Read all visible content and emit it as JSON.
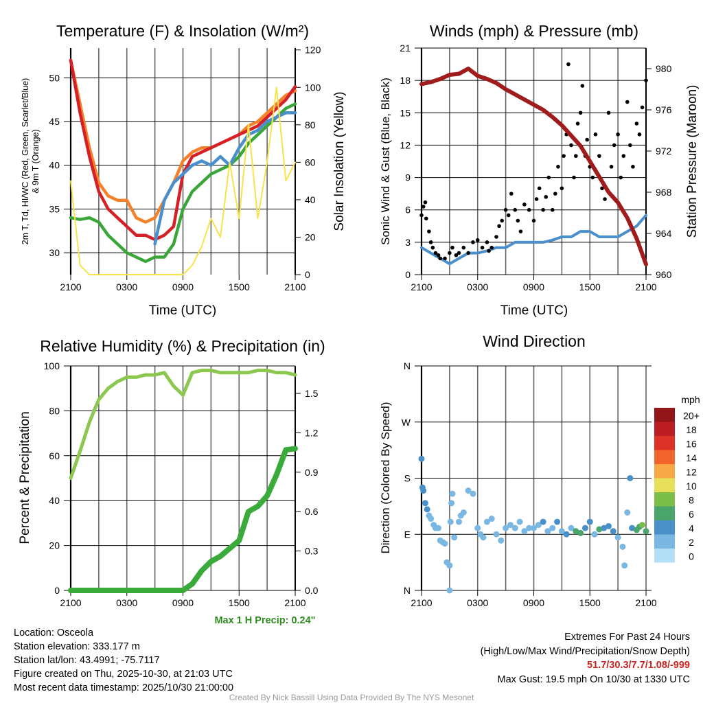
{
  "chart_data": [
    {
      "type": "line",
      "title": "Temperature (F) & Insolation (W/m²)",
      "xlabel": "Time (UTC)",
      "ylabel_lines": [
        "2m T, Td, HI/WC (Red, Green, Scarlet/Blue)",
        "& 9m T (Orange)"
      ],
      "ylabel_right": "Solar Insolation (Yellow)",
      "x_hours": [
        0,
        1,
        2,
        3,
        4,
        5,
        6,
        7,
        8,
        9,
        10,
        11,
        12,
        13,
        14,
        15,
        16,
        17,
        18,
        19,
        20,
        21,
        22,
        23,
        24
      ],
      "x_ticks": [
        "2100",
        "0300",
        "0900",
        "1500",
        "2100"
      ],
      "y_ticks": [
        "30",
        "35",
        "40",
        "45",
        "50"
      ],
      "y_tick_values": [
        30,
        35,
        40,
        45,
        50
      ],
      "y_right_ticks": [
        "0",
        "20",
        "40",
        "60",
        "80",
        "100",
        "120"
      ],
      "y_right_tick_values": [
        0,
        20,
        40,
        60,
        80,
        100,
        120
      ],
      "ylim": [
        27.5,
        53.4
      ],
      "ylim_right": [
        0,
        121
      ],
      "series": [
        {
          "name": "9m T",
          "color": "#f5822a",
          "values": [
            52,
            47,
            42,
            38,
            36.5,
            36,
            36,
            34,
            33.5,
            34,
            36,
            38,
            40.5,
            41.5,
            42,
            42,
            42.5,
            43,
            43.5,
            44.5,
            45,
            46,
            47,
            48,
            48.5
          ]
        },
        {
          "name": "2m T",
          "color": "#d42026",
          "values": [
            52,
            46,
            41,
            37,
            35,
            34,
            33,
            32,
            32,
            31.5,
            32,
            33,
            39,
            41,
            41.5,
            42,
            42.5,
            43,
            43.5,
            44,
            44.5,
            45.5,
            46.5,
            47.5,
            49
          ]
        },
        {
          "name": "Td",
          "color": "#3aa63a",
          "values": [
            34,
            33.8,
            34,
            33.5,
            32,
            31,
            30,
            29.5,
            29,
            29.5,
            29.5,
            31,
            35,
            37,
            38,
            39,
            39.5,
            40,
            41,
            42.5,
            43.5,
            44.5,
            45.5,
            46.5,
            47
          ]
        },
        {
          "name": "HI/WC",
          "color": "#4a8fcc",
          "values": [
            null,
            null,
            null,
            null,
            null,
            null,
            null,
            null,
            null,
            31,
            36,
            38,
            39,
            40,
            40.5,
            40,
            41,
            40,
            42,
            43.5,
            44,
            45,
            45.5,
            46,
            46
          ]
        },
        {
          "name": "Solar Insolation",
          "color": "#f7e34a",
          "axis": "right",
          "values": [
            50,
            5,
            0,
            0,
            0,
            0,
            0,
            0,
            0,
            0,
            0,
            0,
            0,
            5,
            15,
            30,
            20,
            60,
            30,
            80,
            30,
            60,
            100,
            50,
            60
          ]
        }
      ]
    },
    {
      "type": "line+scatter",
      "title": "Winds (mph) & Pressure (mb)",
      "xlabel": "Time (UTC)",
      "ylabel": "Sonic Wind & Gust (Blue, Black)",
      "ylabel_right": "Station Pressure (Maroon)",
      "x_ticks": [
        "2100",
        "0300",
        "0900",
        "1500",
        "2100"
      ],
      "y_ticks": [
        "0",
        "3",
        "6",
        "9",
        "12",
        "15",
        "18",
        "21"
      ],
      "y_tick_values": [
        0,
        3,
        6,
        9,
        12,
        15,
        18,
        21
      ],
      "y_right_ticks": [
        "960",
        "964",
        "968",
        "972",
        "976",
        "980"
      ],
      "y_right_tick_values": [
        960,
        964,
        968,
        972,
        976,
        980
      ],
      "ylim": [
        0,
        21
      ],
      "ylim_right": [
        960,
        982
      ],
      "wind": {
        "name": "Sonic Wind",
        "color": "#4a8fcc",
        "values": [
          2.5,
          2,
          1.5,
          1,
          1.5,
          2,
          2,
          2.2,
          2.5,
          2.5,
          3,
          3,
          3,
          3,
          3.2,
          3.5,
          3.5,
          4,
          4,
          3.5,
          3.5,
          3.5,
          4,
          4.5,
          5.5
        ]
      },
      "pressure": {
        "name": "Station Pressure",
        "color": "#a01c1c",
        "values": [
          978.5,
          978.7,
          979,
          979.4,
          979.5,
          980,
          979.3,
          979,
          978.6,
          978,
          977.5,
          977,
          976.5,
          976,
          975.3,
          974.5,
          973.5,
          972.5,
          971,
          969.5,
          968,
          967,
          965.5,
          963.5,
          961
        ]
      },
      "gust": {
        "name": "Gust",
        "color": "#000000",
        "points": [
          [
            0,
            5.5
          ],
          [
            0.2,
            6.3
          ],
          [
            0.4,
            6.7
          ],
          [
            0.5,
            5.2
          ],
          [
            0.8,
            4
          ],
          [
            1,
            3
          ],
          [
            1.2,
            2.5
          ],
          [
            1.5,
            2
          ],
          [
            1.8,
            1.8
          ],
          [
            2,
            1.5
          ],
          [
            2.5,
            1.5
          ],
          [
            3,
            2
          ],
          [
            3.3,
            2.5
          ],
          [
            3.7,
            1.8
          ],
          [
            4,
            2
          ],
          [
            4.5,
            2.5
          ],
          [
            5,
            2
          ],
          [
            5.5,
            3
          ],
          [
            6,
            3.2
          ],
          [
            6.5,
            2.5
          ],
          [
            7,
            3
          ],
          [
            7.2,
            2.2
          ],
          [
            7.5,
            2.5
          ],
          [
            8,
            3.5
          ],
          [
            8.3,
            4.5
          ],
          [
            8.6,
            5
          ],
          [
            9,
            6
          ],
          [
            9.3,
            5.5
          ],
          [
            9.6,
            7.5
          ],
          [
            10,
            6
          ],
          [
            10.3,
            5
          ],
          [
            10.6,
            4
          ],
          [
            11,
            6.5
          ],
          [
            11.5,
            6
          ],
          [
            12,
            5
          ],
          [
            12.3,
            7
          ],
          [
            12.6,
            8
          ],
          [
            13,
            6
          ],
          [
            13.3,
            7.2
          ],
          [
            13.6,
            9
          ],
          [
            14,
            6
          ],
          [
            14.3,
            7.5
          ],
          [
            14.6,
            10
          ],
          [
            15,
            8
          ],
          [
            15.2,
            11
          ],
          [
            15.5,
            13
          ],
          [
            15.7,
            19.5
          ],
          [
            16,
            12
          ],
          [
            16.3,
            9
          ],
          [
            16.5,
            11
          ],
          [
            16.7,
            14
          ],
          [
            17,
            15
          ],
          [
            17.2,
            17.5
          ],
          [
            17.5,
            11
          ],
          [
            17.7,
            12.5
          ],
          [
            18,
            10
          ],
          [
            18.3,
            9
          ],
          [
            18.6,
            13
          ],
          [
            19,
            11
          ],
          [
            19.3,
            8
          ],
          [
            19.6,
            7
          ],
          [
            20,
            15
          ],
          [
            20.3,
            10
          ],
          [
            20.6,
            12
          ],
          [
            21,
            13
          ],
          [
            21.3,
            9
          ],
          [
            21.6,
            11
          ],
          [
            22,
            16
          ],
          [
            22.3,
            12
          ],
          [
            22.6,
            10
          ],
          [
            23,
            14
          ],
          [
            23.3,
            13
          ],
          [
            23.6,
            15.5
          ],
          [
            24,
            18
          ]
        ]
      }
    },
    {
      "type": "line",
      "title": "Relative Humidity (%) & Precipitation (in)",
      "ylabel": "Percent & Precipitation",
      "x_ticks": [
        "2100",
        "0300",
        "0900",
        "1500",
        "2100"
      ],
      "y_ticks": [
        "0",
        "20",
        "40",
        "60",
        "80",
        "100"
      ],
      "y_tick_values": [
        0,
        20,
        40,
        60,
        80,
        100
      ],
      "y_right_ticks": [
        "0.0",
        "0.3",
        "0.6",
        "0.9",
        "1.2",
        "1.5"
      ],
      "y_right_tick_values": [
        0,
        0.3,
        0.6,
        0.9,
        1.2,
        1.5
      ],
      "ylim": [
        0,
        100
      ],
      "ylim_right": [
        0,
        1.709
      ],
      "rh": {
        "name": "Relative Humidity",
        "color": "#8cc850",
        "values": [
          50,
          62,
          75,
          85,
          90,
          93,
          95,
          95,
          96,
          96,
          97,
          91,
          87,
          97,
          98,
          98,
          97,
          97,
          97,
          97,
          98,
          98,
          97,
          97,
          96
        ]
      },
      "precip": {
        "name": "Precipitation",
        "color": "#3aaa3a",
        "values": [
          0,
          0,
          0,
          0,
          0,
          0,
          0,
          0,
          0,
          0,
          0,
          0,
          0,
          0.05,
          0.15,
          0.22,
          0.26,
          0.32,
          0.38,
          0.6,
          0.64,
          0.72,
          0.88,
          1.07,
          1.08
        ]
      },
      "annotation": "Max 1 H Precip: 0.24\""
    },
    {
      "type": "scatter",
      "title": "Wind Direction",
      "ylabel": "Direction (Colored By Speed)",
      "x_ticks": [
        "2100",
        "0300",
        "0900",
        "1500",
        "2100"
      ],
      "y_ticks": [
        "N",
        "E",
        "S",
        "W",
        "N"
      ],
      "y_tick_values": [
        0,
        90,
        180,
        270,
        360
      ],
      "ylim": [
        0,
        360
      ],
      "colorbar": {
        "title": "mph",
        "labels": [
          "0",
          "2",
          "4",
          "6",
          "8",
          "10",
          "12",
          "14",
          "16",
          "18",
          "20+"
        ],
        "colors": [
          "#b3e0f5",
          "#7ab8e3",
          "#4a90c8",
          "#4aa56b",
          "#7bbf4a",
          "#e8e05a",
          "#f5a845",
          "#f0632b",
          "#dc3227",
          "#bd1e24",
          "#921519"
        ]
      },
      "points": [
        [
          0,
          211,
          3
        ],
        [
          0.1,
          165,
          3
        ],
        [
          0.2,
          160,
          3
        ],
        [
          0.4,
          140,
          3
        ],
        [
          0.6,
          130,
          3
        ],
        [
          0.8,
          120,
          2
        ],
        [
          1,
          115,
          2
        ],
        [
          1.3,
          105,
          2
        ],
        [
          1.5,
          100,
          2
        ],
        [
          1.8,
          100,
          1
        ],
        [
          2,
          80,
          1
        ],
        [
          2.3,
          77,
          1
        ],
        [
          2.5,
          75,
          1
        ],
        [
          2.7,
          45,
          1
        ],
        [
          3,
          40,
          1
        ],
        [
          3,
          0,
          1
        ],
        [
          3.1,
          110,
          1
        ],
        [
          3.2,
          140,
          1
        ],
        [
          3.3,
          155,
          1
        ],
        [
          3.5,
          85,
          1
        ],
        [
          4,
          110,
          1
        ],
        [
          4.2,
          120,
          1
        ],
        [
          4.5,
          125,
          1
        ],
        [
          5,
          160,
          1
        ],
        [
          5.5,
          155,
          1
        ],
        [
          6,
          100,
          1
        ],
        [
          6.3,
          90,
          2
        ],
        [
          6.6,
          85,
          1
        ],
        [
          7,
          110,
          1
        ],
        [
          7.5,
          115,
          1
        ],
        [
          8,
          90,
          2
        ],
        [
          8.5,
          80,
          2
        ],
        [
          9,
          100,
          2
        ],
        [
          9.5,
          105,
          2
        ],
        [
          10,
          100,
          2
        ],
        [
          10.5,
          110,
          2
        ],
        [
          11,
          95,
          2
        ],
        [
          11.5,
          100,
          2
        ],
        [
          12,
          100,
          2
        ],
        [
          12.5,
          105,
          2
        ],
        [
          13,
          110,
          3
        ],
        [
          13.5,
          95,
          2
        ],
        [
          14,
          100,
          2
        ],
        [
          14.5,
          110,
          3
        ],
        [
          15,
          95,
          2
        ],
        [
          15.5,
          90,
          3
        ],
        [
          16,
          100,
          2
        ],
        [
          16.5,
          95,
          5
        ],
        [
          17,
          92,
          6
        ],
        [
          17.5,
          100,
          3
        ],
        [
          18,
          110,
          3
        ],
        [
          18.5,
          90,
          2
        ],
        [
          19,
          98,
          5
        ],
        [
          19.5,
          100,
          3
        ],
        [
          20,
          103,
          4
        ],
        [
          20.5,
          95,
          3
        ],
        [
          21,
          85,
          2
        ],
        [
          21.5,
          70,
          2
        ],
        [
          21.7,
          40,
          1
        ],
        [
          22,
          125,
          2
        ],
        [
          22.3,
          180,
          3
        ],
        [
          22.5,
          100,
          4
        ],
        [
          23,
          97,
          6
        ],
        [
          23.3,
          102,
          6
        ],
        [
          23.6,
          105,
          7
        ],
        [
          24,
          95,
          6
        ]
      ]
    }
  ],
  "footer": {
    "location": "Location: Osceola",
    "elevation": "Station elevation: 333.177 m",
    "latlon": "Station lat/lon: 43.4991; -75.7117",
    "created": "Figure created on Thu, 2025-10-30, at 21:03 UTC",
    "recent": "Most recent data timestamp: 2025/10/30 21:00:00",
    "extremes_title": "Extremes For Past 24 Hours",
    "extremes_sub": "(High/Low/Max Wind/Precipitation/Snow Depth)",
    "extremes_values": "51.7/30.3/7.7/1.08/-999",
    "max_gust": "Max Gust: 19.5 mph On 10/30 at 1330 UTC",
    "credit": "Created By Nick Bassill Using Data Provided By The NYS Mesonet"
  }
}
